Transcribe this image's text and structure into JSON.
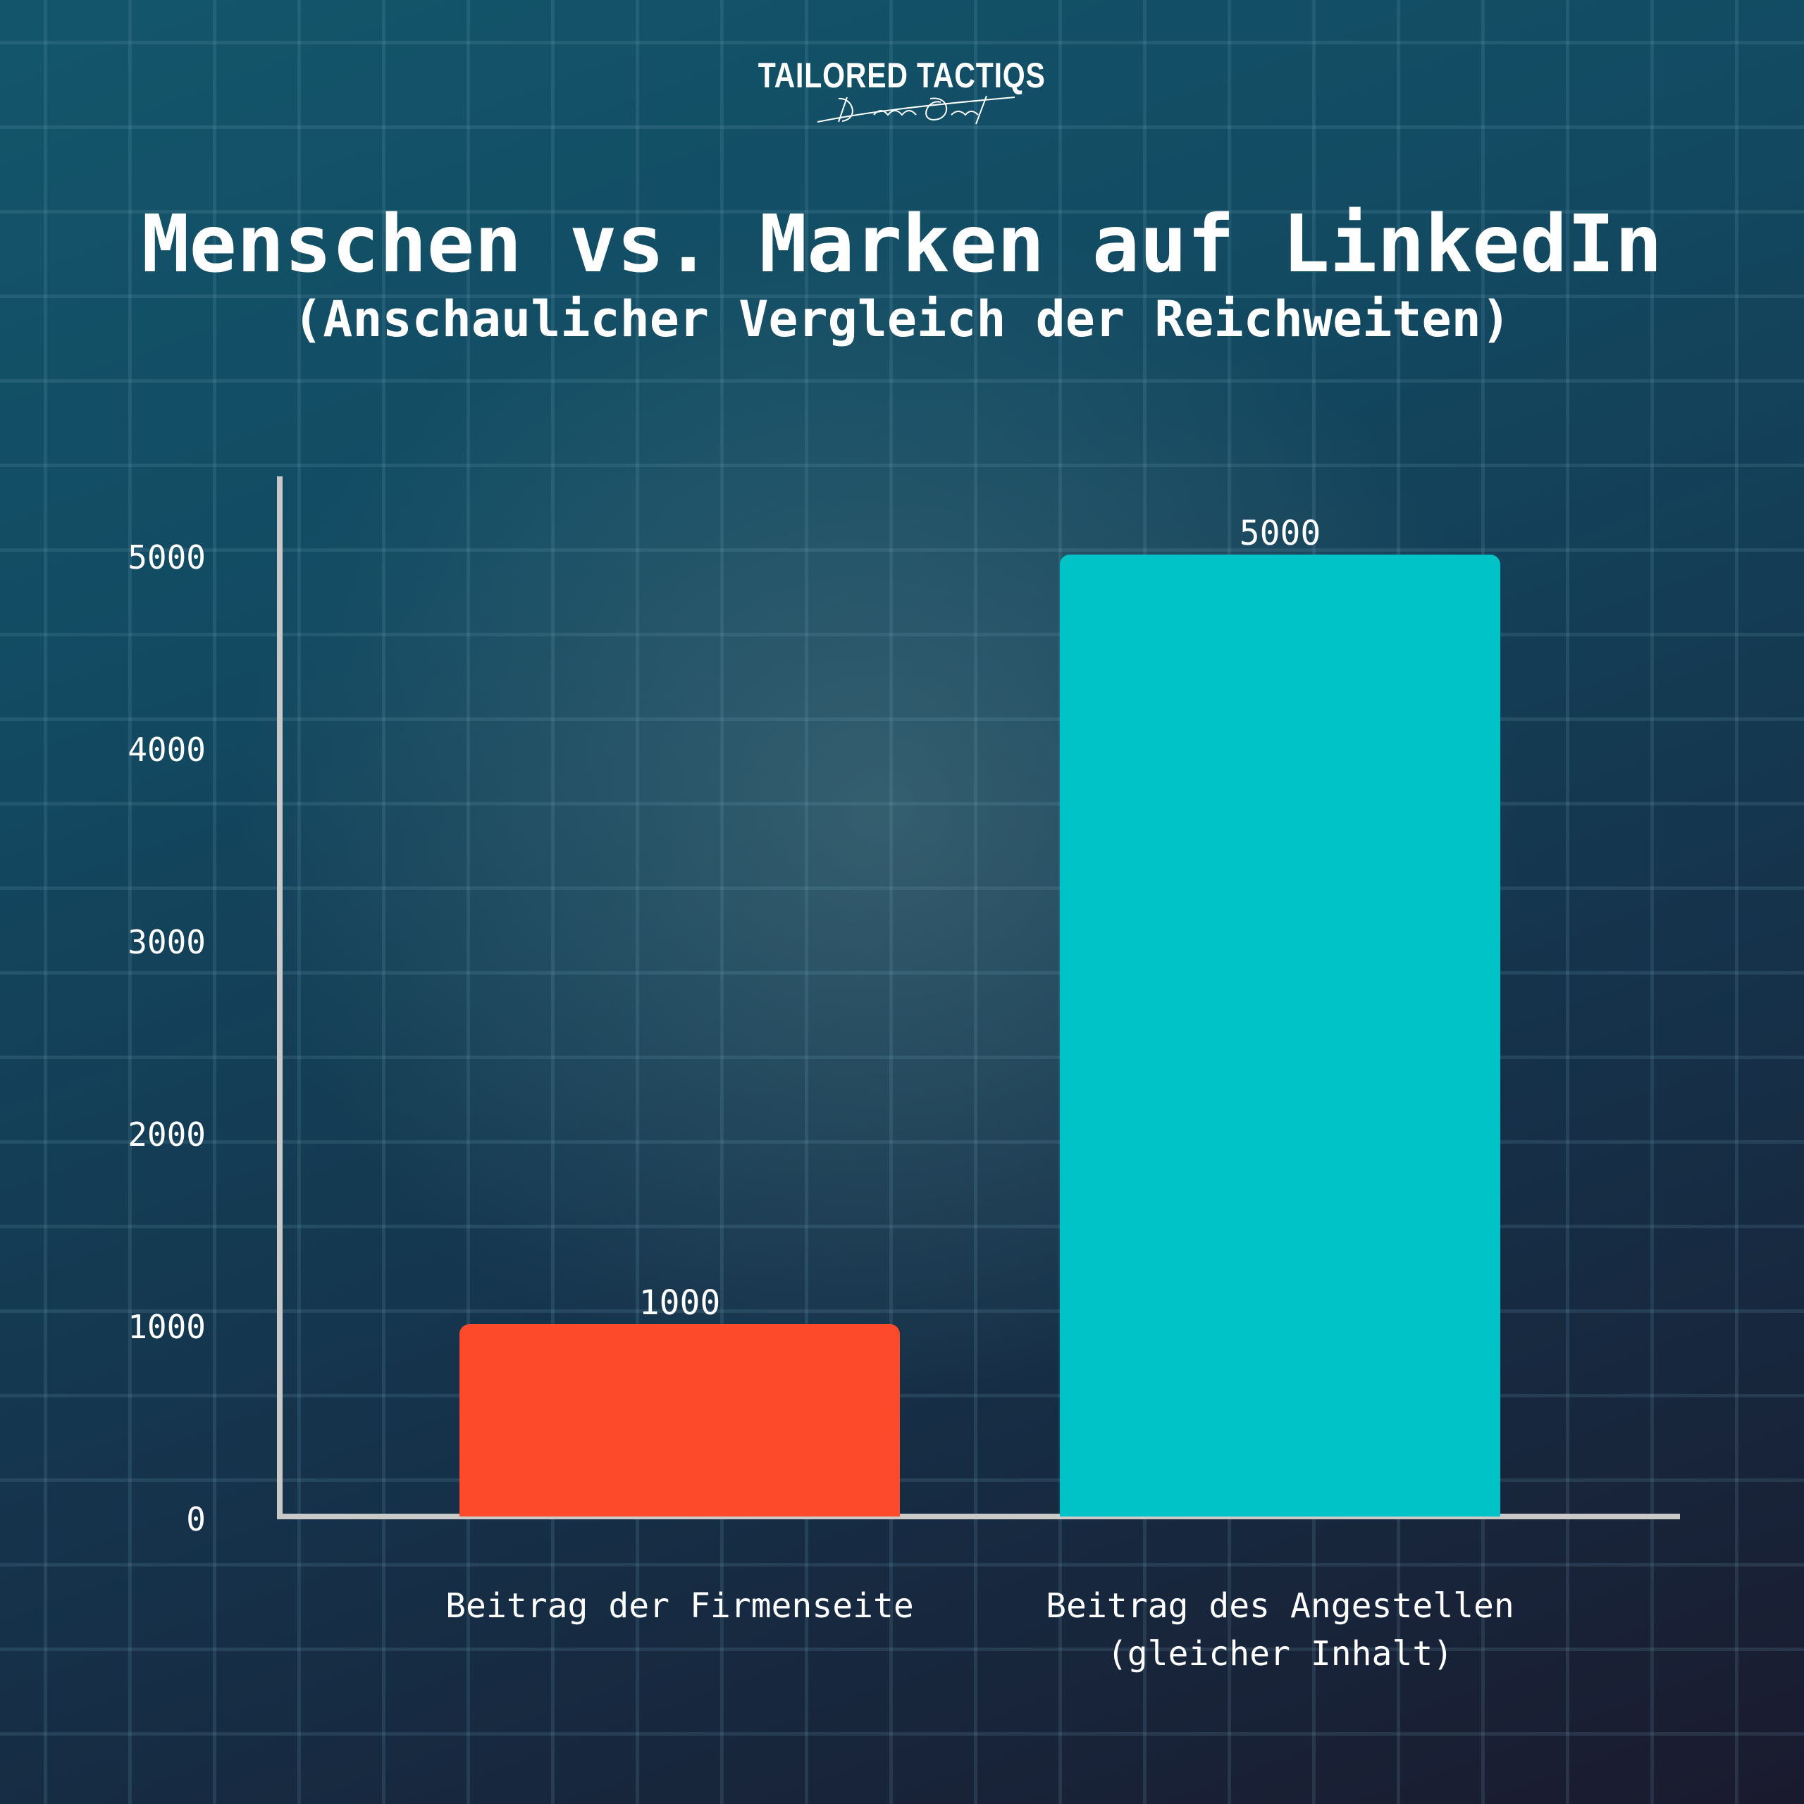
{
  "logo": {
    "text": "TAILORED TACTIQS",
    "signature": "Dennis Quast"
  },
  "chart_data": {
    "type": "bar",
    "title": "Menschen vs. Marken auf LinkedIn",
    "subtitle": "(Anschaulicher Vergleich der Reichweiten)",
    "categories": [
      "Beitrag der Firmenseite",
      "Beitrag des Angestellen (gleicher Inhalt)"
    ],
    "category_lines": [
      [
        "Beitrag der Firmenseite"
      ],
      [
        "Beitrag des Angestellen",
        "(gleicher Inhalt)"
      ]
    ],
    "values": [
      1000,
      5000
    ],
    "value_labels": [
      "1000",
      "5000"
    ],
    "colors": [
      "#fc4a2a",
      "#00c3c7"
    ],
    "yticks": [
      "0",
      "1000",
      "2000",
      "3000",
      "4000",
      "5000"
    ],
    "ylim": [
      0,
      5400
    ],
    "xlabel": "",
    "ylabel": "",
    "grid": false
  }
}
